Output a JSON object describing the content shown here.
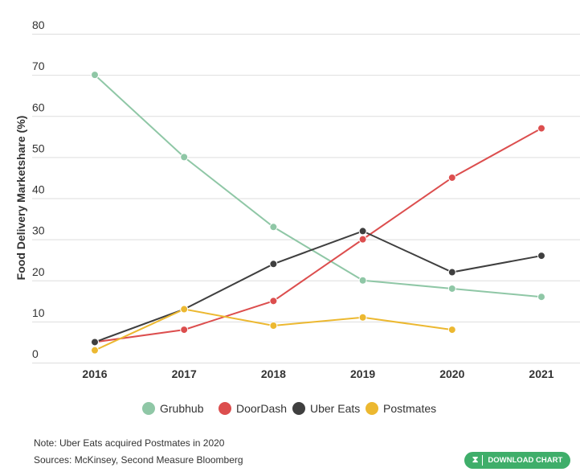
{
  "chart_data": {
    "type": "line",
    "title": "",
    "xlabel": "",
    "ylabel": "Food Delivery Marketshare (%)",
    "x": [
      2016,
      2017,
      2018,
      2019,
      2020,
      2021
    ],
    "ylim": [
      0,
      80
    ],
    "yticks": [
      0,
      10,
      20,
      30,
      40,
      50,
      60,
      70,
      80
    ],
    "grid": true,
    "legend": "bottom",
    "series": [
      {
        "name": "Grubhub",
        "color": "#8fc7a6",
        "values": [
          70,
          50,
          33,
          20,
          18,
          16
        ]
      },
      {
        "name": "DoorDash",
        "color": "#dc4e4e",
        "values": [
          5,
          8,
          15,
          30,
          45,
          57
        ]
      },
      {
        "name": "Uber Eats",
        "color": "#3f3f3f",
        "values": [
          5,
          13,
          24,
          32,
          22,
          26
        ]
      },
      {
        "name": "Postmates",
        "color": "#ecb830",
        "values": [
          3,
          13,
          9,
          11,
          8,
          null
        ]
      }
    ]
  },
  "notes": {
    "note": "Note: Uber Eats acquired Postmates in 2020",
    "sources": "Sources: McKinsey, Second Measure Bloomberg"
  },
  "download": {
    "label": "DOWNLOAD CHART",
    "icon": "download-icon"
  }
}
